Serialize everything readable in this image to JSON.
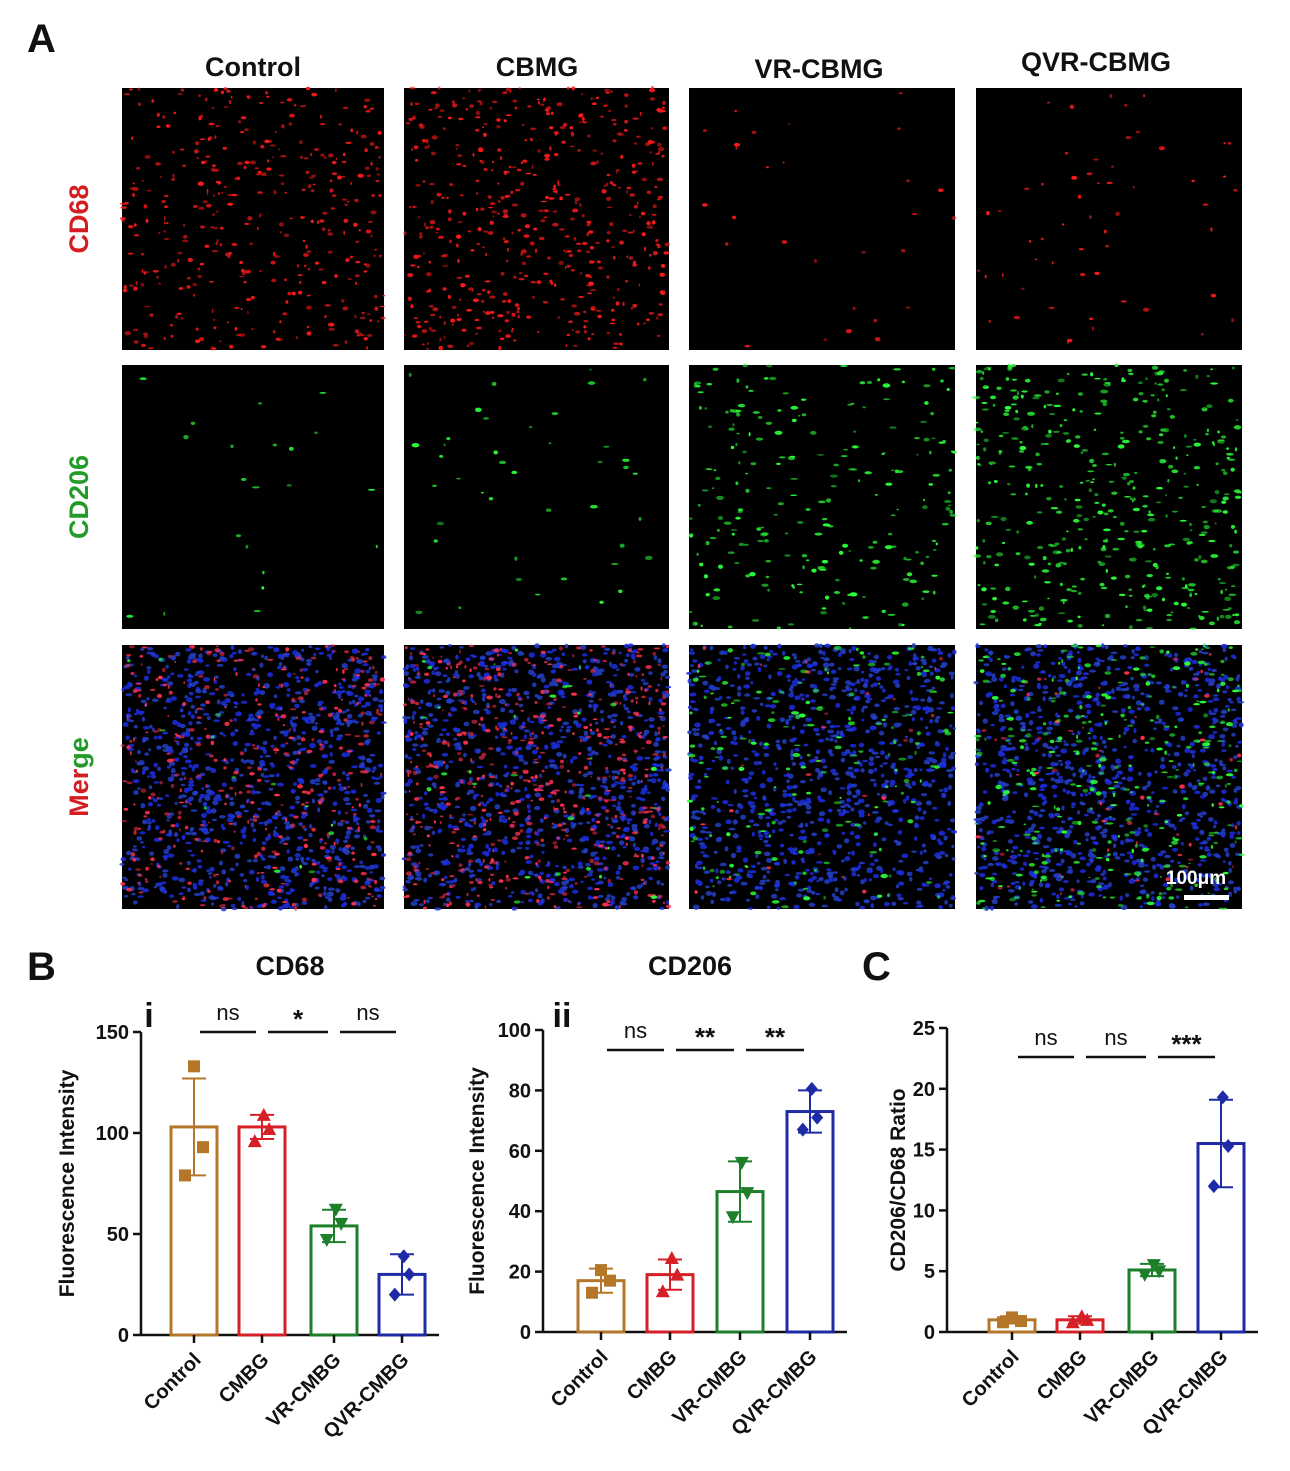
{
  "panel_A": {
    "letter": "A",
    "columns": [
      "Control",
      "CBMG",
      "VR-CBMG",
      "QVR-CBMG"
    ],
    "rows": [
      "CD68",
      "CD206",
      "Merge"
    ],
    "density": {
      "CD68": [
        0.55,
        0.75,
        0.04,
        0.08
      ],
      "CD206": [
        0.04,
        0.08,
        0.45,
        0.85
      ]
    },
    "scale_bar": "100μm"
  },
  "panel_B_letter": "B",
  "panel_C_letter": "C",
  "colors": {
    "Control": "#b5762a",
    "CMBG": "#d61f26",
    "VR-CMBG": "#1e7f2a",
    "QVR-CMBG": "#1e2aa6",
    "cd68_label": "#d31d20",
    "cd206_label": "#239b2a"
  },
  "chart_data": [
    {
      "type": "bar",
      "numeral": "i",
      "title": "CD68",
      "ylabel": "Fluorescence Intensity",
      "ylim": [
        0,
        150
      ],
      "yticks": [
        0,
        50,
        100,
        150
      ],
      "categories": [
        "Control",
        "CMBG",
        "VR-CMBG",
        "QVR-CMBG"
      ],
      "values": [
        103,
        103,
        54,
        30
      ],
      "errors": [
        24,
        6,
        8,
        10
      ],
      "points": [
        [
          133,
          93,
          79
        ],
        [
          109,
          102,
          96
        ],
        [
          62,
          55,
          47
        ],
        [
          39,
          30,
          20
        ]
      ],
      "markers": [
        "square",
        "triangle",
        "triangle-down",
        "diamond"
      ],
      "significance": [
        {
          "from": 0,
          "to": 1,
          "label": "ns"
        },
        {
          "from": 1,
          "to": 2,
          "label": "*"
        },
        {
          "from": 2,
          "to": 3,
          "label": "ns"
        }
      ]
    },
    {
      "type": "bar",
      "numeral": "ii",
      "title": "CD206",
      "ylabel": "Fluorescence Intensity",
      "ylim": [
        0,
        100
      ],
      "yticks": [
        0,
        20,
        40,
        60,
        80,
        100
      ],
      "categories": [
        "Control",
        "CMBG",
        "VR-CMBG",
        "QVR-CMBG"
      ],
      "values": [
        17,
        19,
        46.5,
        73
      ],
      "errors": [
        4,
        5,
        10,
        7
      ],
      "points": [
        [
          20.5,
          17,
          13
        ],
        [
          24.5,
          19,
          13.5
        ],
        [
          56,
          46,
          38
        ],
        [
          80.5,
          71,
          67
        ]
      ],
      "markers": [
        "square",
        "triangle",
        "triangle-down",
        "diamond"
      ],
      "significance": [
        {
          "from": 0,
          "to": 1,
          "label": "ns"
        },
        {
          "from": 1,
          "to": 2,
          "label": "**"
        },
        {
          "from": 2,
          "to": 3,
          "label": "**"
        }
      ]
    },
    {
      "type": "bar",
      "title": "",
      "ylabel": "CD206/CD68 Ratio",
      "ylim": [
        0,
        25
      ],
      "yticks": [
        0,
        5,
        10,
        15,
        20,
        25
      ],
      "categories": [
        "Control",
        "CMBG",
        "VR-CMBG",
        "QVR-CMBG"
      ],
      "values": [
        1.0,
        1.0,
        5.1,
        15.5
      ],
      "errors": [
        0.3,
        0.3,
        0.5,
        3.6
      ],
      "points": [
        [
          1.2,
          0.9,
          0.8
        ],
        [
          1.3,
          1.0,
          0.8
        ],
        [
          5.5,
          5.0,
          4.7
        ],
        [
          19.3,
          15.3,
          12.0
        ]
      ],
      "markers": [
        "square",
        "triangle",
        "triangle-down",
        "diamond"
      ],
      "significance": [
        {
          "from": 0,
          "to": 1,
          "label": "ns"
        },
        {
          "from": 1,
          "to": 2,
          "label": "ns"
        },
        {
          "from": 2,
          "to": 3,
          "label": "***"
        }
      ]
    }
  ]
}
